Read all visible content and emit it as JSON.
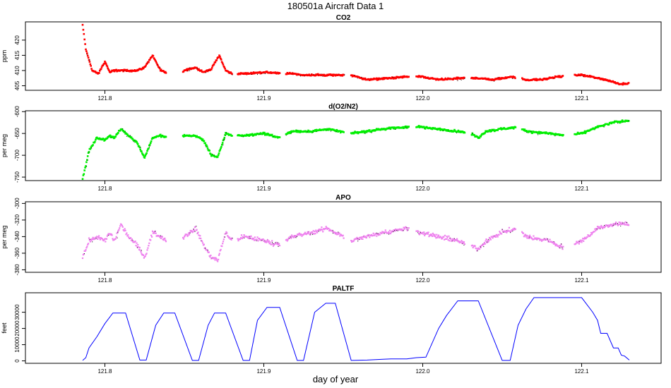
{
  "title": "180501a   Aircraft Data 1",
  "xlabel": "day of year",
  "colors": {
    "co2": "#ff0000",
    "o2n2": "#00ee00",
    "apo": "#ee82ee",
    "paltf": "#0000ff",
    "dots": "#000000"
  },
  "chart_data": [
    {
      "type": "scatter",
      "title": "CO2",
      "ylabel": "ppm",
      "xlim": [
        121.75,
        122.15
      ],
      "ylim": [
        403.5,
        426
      ],
      "xticks": [
        121.8,
        121.9,
        122.0,
        122.1
      ],
      "xtick_labels": [
        "121.8",
        "121.9",
        "122.0",
        "122.1"
      ],
      "yticks": [
        405,
        410,
        415,
        420
      ],
      "ytick_labels": [
        "405",
        "410",
        "415",
        "420"
      ],
      "series": [
        {
          "points": [
            [
              121.786,
              425
            ],
            [
              121.788,
              417
            ],
            [
              121.792,
              410
            ],
            [
              121.796,
              409
            ],
            [
              121.8,
              413
            ],
            [
              121.803,
              409.5
            ],
            [
              121.806,
              410
            ],
            [
              121.81,
              410
            ],
            [
              121.82,
              410
            ],
            [
              121.825,
              411
            ],
            [
              121.83,
              415
            ],
            [
              121.835,
              410
            ],
            [
              121.84,
              409
            ],
            [
              121.845,
              408
            ],
            [
              121.85,
              410
            ],
            [
              121.857,
              411
            ],
            [
              121.862,
              409.5
            ],
            [
              121.867,
              410.5
            ],
            [
              121.872,
              415
            ],
            [
              121.876,
              410
            ],
            [
              121.88,
              409
            ],
            [
              121.89,
              409
            ],
            [
              121.9,
              409.5
            ],
            [
              121.91,
              409
            ],
            [
              121.918,
              409
            ],
            [
              121.925,
              408.5
            ],
            [
              121.94,
              408.5
            ],
            [
              121.955,
              408.5
            ],
            [
              121.965,
              407
            ],
            [
              121.98,
              407.5
            ],
            [
              121.99,
              408
            ],
            [
              121.998,
              408
            ],
            [
              122.01,
              407
            ],
            [
              122.025,
              407.5
            ],
            [
              122.035,
              407.5
            ],
            [
              122.045,
              407
            ],
            [
              122.055,
              408
            ],
            [
              122.065,
              407
            ],
            [
              122.075,
              407
            ],
            [
              122.085,
              408
            ],
            [
              122.1,
              408.5
            ],
            [
              122.115,
              407
            ],
            [
              122.125,
              405.5
            ],
            [
              122.13,
              406
            ]
          ]
        }
      ]
    },
    {
      "type": "scatter",
      "title": "d(O2/N2)",
      "ylabel": "per meg",
      "xlim": [
        121.75,
        122.15
      ],
      "ylim": [
        -758,
        -598
      ],
      "xticks": [
        121.8,
        121.9,
        122.0,
        122.1
      ],
      "xtick_labels": [
        "121.8",
        "121.9",
        "122.0",
        "122.1"
      ],
      "yticks": [
        -750,
        -700,
        -650,
        -600
      ],
      "ytick_labels": [
        "-750",
        "-700",
        "-650",
        "-600"
      ],
      "series": [
        {
          "points": [
            [
              121.786,
              -755
            ],
            [
              121.79,
              -690
            ],
            [
              121.795,
              -660
            ],
            [
              121.8,
              -665
            ],
            [
              121.803,
              -655
            ],
            [
              121.806,
              -660
            ],
            [
              121.81,
              -640
            ],
            [
              121.815,
              -655
            ],
            [
              121.82,
              -670
            ],
            [
              121.825,
              -705
            ],
            [
              121.83,
              -660
            ],
            [
              121.835,
              -655
            ],
            [
              121.84,
              -660
            ],
            [
              121.845,
              -665
            ],
            [
              121.85,
              -655
            ],
            [
              121.857,
              -655
            ],
            [
              121.862,
              -665
            ],
            [
              121.867,
              -700
            ],
            [
              121.871,
              -705
            ],
            [
              121.876,
              -650
            ],
            [
              121.88,
              -655
            ],
            [
              121.888,
              -655
            ],
            [
              121.9,
              -650
            ],
            [
              121.91,
              -660
            ],
            [
              121.918,
              -645
            ],
            [
              121.93,
              -645
            ],
            [
              121.94,
              -640
            ],
            [
              121.955,
              -650
            ],
            [
              121.965,
              -645
            ],
            [
              121.975,
              -640
            ],
            [
              121.99,
              -635
            ],
            [
              121.998,
              -635
            ],
            [
              122.01,
              -640
            ],
            [
              122.022,
              -645
            ],
            [
              122.03,
              -650
            ],
            [
              122.035,
              -660
            ],
            [
              122.04,
              -645
            ],
            [
              122.05,
              -640
            ],
            [
              122.06,
              -635
            ],
            [
              122.065,
              -645
            ],
            [
              122.08,
              -650
            ],
            [
              122.09,
              -655
            ],
            [
              122.1,
              -650
            ],
            [
              122.11,
              -635
            ],
            [
              122.12,
              -625
            ],
            [
              122.13,
              -620
            ]
          ]
        }
      ]
    },
    {
      "type": "scatter",
      "title": "APO",
      "ylabel": "per meg",
      "xlim": [
        121.75,
        122.15
      ],
      "ylim": [
        -383,
        -298
      ],
      "xticks": [
        121.8,
        121.9,
        122.0,
        122.1
      ],
      "xtick_labels": [
        "121.8",
        "121.9",
        "122.0",
        "122.1"
      ],
      "yticks": [
        -380,
        -360,
        -340,
        -320,
        -300
      ],
      "ytick_labels": [
        "-380",
        "-360",
        "-340",
        "-320",
        "-300"
      ],
      "series": [
        {
          "points": [
            [
              121.786,
              -365
            ],
            [
              121.79,
              -345
            ],
            [
              121.795,
              -340
            ],
            [
              121.8,
              -345
            ],
            [
              121.803,
              -335
            ],
            [
              121.806,
              -345
            ],
            [
              121.81,
              -325
            ],
            [
              121.815,
              -340
            ],
            [
              121.82,
              -350
            ],
            [
              121.825,
              -365
            ],
            [
              121.83,
              -335
            ],
            [
              121.835,
              -340
            ],
            [
              121.84,
              -345
            ],
            [
              121.845,
              -345
            ],
            [
              121.85,
              -340
            ],
            [
              121.857,
              -330
            ],
            [
              121.862,
              -350
            ],
            [
              121.867,
              -365
            ],
            [
              121.871,
              -368
            ],
            [
              121.876,
              -335
            ],
            [
              121.88,
              -345
            ],
            [
              121.888,
              -340
            ],
            [
              121.9,
              -345
            ],
            [
              121.91,
              -350
            ],
            [
              121.918,
              -340
            ],
            [
              121.93,
              -335
            ],
            [
              121.94,
              -330
            ],
            [
              121.955,
              -345
            ],
            [
              121.965,
              -340
            ],
            [
              121.975,
              -335
            ],
            [
              121.99,
              -330
            ],
            [
              121.998,
              -335
            ],
            [
              122.01,
              -340
            ],
            [
              122.022,
              -345
            ],
            [
              122.03,
              -350
            ],
            [
              122.035,
              -355
            ],
            [
              122.04,
              -345
            ],
            [
              122.05,
              -335
            ],
            [
              122.06,
              -330
            ],
            [
              122.065,
              -340
            ],
            [
              122.08,
              -345
            ],
            [
              122.09,
              -355
            ],
            [
              122.1,
              -345
            ],
            [
              122.11,
              -330
            ],
            [
              122.12,
              -325
            ],
            [
              122.13,
              -325
            ]
          ]
        }
      ]
    },
    {
      "type": "line",
      "title": "PALTF",
      "ylabel": "feet",
      "xlim": [
        121.75,
        122.15
      ],
      "ylim": [
        -1500,
        42000
      ],
      "xticks": [
        121.8,
        121.9,
        122.0,
        122.1
      ],
      "xtick_labels": [
        "121.8",
        "121.9",
        "122.0",
        "122.1"
      ],
      "yticks": [
        0,
        10000,
        20000,
        30000
      ],
      "ytick_labels": [
        "0",
        "10000",
        "20000",
        "30000"
      ],
      "series": [
        {
          "points": [
            [
              121.786,
              300
            ],
            [
              121.788,
              2000
            ],
            [
              121.79,
              8000
            ],
            [
              121.795,
              15000
            ],
            [
              121.8,
              23000
            ],
            [
              121.805,
              29500
            ],
            [
              121.813,
              29500
            ],
            [
              121.822,
              500
            ],
            [
              121.826,
              500
            ],
            [
              121.832,
              22000
            ],
            [
              121.837,
              29500
            ],
            [
              121.844,
              29500
            ],
            [
              121.855,
              300
            ],
            [
              121.859,
              300
            ],
            [
              121.865,
              22000
            ],
            [
              121.869,
              29500
            ],
            [
              121.876,
              29500
            ],
            [
              121.887,
              300
            ],
            [
              121.891,
              300
            ],
            [
              121.896,
              25000
            ],
            [
              121.902,
              33000
            ],
            [
              121.91,
              33000
            ],
            [
              121.921,
              300
            ],
            [
              121.925,
              300
            ],
            [
              121.932,
              30000
            ],
            [
              121.939,
              35500
            ],
            [
              121.945,
              35500
            ],
            [
              121.955,
              300
            ],
            [
              121.965,
              500
            ],
            [
              121.975,
              1000
            ],
            [
              121.98,
              1200
            ],
            [
              121.99,
              1200
            ],
            [
              121.996,
              2000
            ],
            [
              122.002,
              2300
            ],
            [
              122.01,
              20000
            ],
            [
              122.015,
              28000
            ],
            [
              122.022,
              37000
            ],
            [
              122.035,
              37000
            ],
            [
              122.05,
              300
            ],
            [
              122.055,
              300
            ],
            [
              122.06,
              22000
            ],
            [
              122.065,
              32000
            ],
            [
              122.07,
              39000
            ],
            [
              122.1,
              39000
            ],
            [
              122.107,
              30000
            ],
            [
              122.11,
              25000
            ],
            [
              122.112,
              17000
            ],
            [
              122.116,
              17000
            ],
            [
              122.12,
              8000
            ],
            [
              122.123,
              8000
            ],
            [
              122.125,
              3500
            ],
            [
              122.127,
              3000
            ],
            [
              122.13,
              500
            ]
          ]
        }
      ]
    }
  ]
}
